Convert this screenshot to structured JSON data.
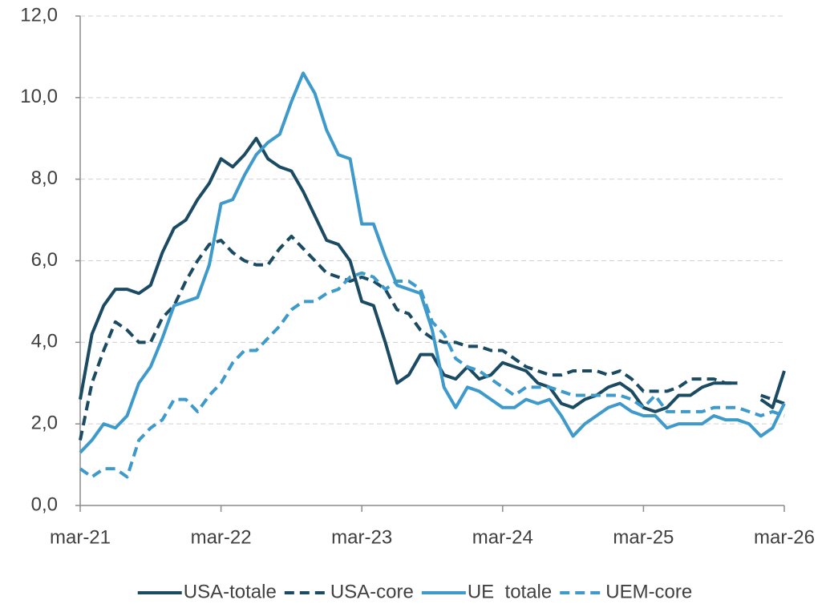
{
  "chart_data": {
    "type": "line",
    "categories": [
      "mar-21",
      null,
      null,
      null,
      null,
      null,
      null,
      null,
      null,
      null,
      null,
      null,
      "mar-22",
      null,
      null,
      null,
      null,
      null,
      null,
      null,
      null,
      null,
      null,
      null,
      "mar-23",
      null,
      null,
      null,
      null,
      null,
      null,
      null,
      null,
      null,
      null,
      null,
      "mar-24",
      null,
      null,
      null,
      null,
      null,
      null,
      null,
      null,
      null,
      null,
      null,
      "mar-25",
      null,
      null,
      null,
      null,
      null,
      null,
      null,
      null,
      null,
      null,
      null,
      "mar-26"
    ],
    "series": [
      {
        "name": "USA-totale",
        "color": "#1b4a63",
        "dashed": false,
        "values": [
          2.6,
          4.2,
          4.9,
          5.3,
          5.3,
          5.2,
          5.4,
          6.2,
          6.8,
          7.0,
          7.5,
          7.9,
          8.5,
          8.3,
          8.6,
          9.0,
          8.5,
          8.3,
          8.2,
          7.7,
          7.1,
          6.5,
          6.4,
          6.0,
          5.0,
          4.9,
          4.0,
          3.0,
          3.2,
          3.7,
          3.7,
          3.2,
          3.1,
          3.4,
          3.1,
          3.2,
          3.5,
          3.4,
          3.3,
          3.0,
          2.9,
          2.5,
          2.4,
          2.6,
          2.7,
          2.9,
          3.0,
          2.8,
          2.4,
          2.3,
          2.4,
          2.7,
          2.7,
          2.9,
          3.0,
          3.0,
          3.0,
          null,
          2.6,
          2.4,
          3.3
        ]
      },
      {
        "name": "USA-core",
        "color": "#1b4a63",
        "dashed": true,
        "values": [
          1.6,
          3.0,
          3.8,
          4.5,
          4.3,
          4.0,
          4.0,
          4.6,
          4.9,
          5.5,
          6.0,
          6.4,
          6.5,
          6.2,
          6.0,
          5.9,
          5.9,
          6.3,
          6.6,
          6.3,
          6.0,
          5.7,
          5.6,
          5.5,
          5.6,
          5.5,
          5.3,
          4.8,
          4.7,
          4.3,
          4.1,
          4.0,
          4.0,
          3.9,
          3.9,
          3.8,
          3.8,
          3.6,
          3.4,
          3.3,
          3.2,
          3.2,
          3.3,
          3.3,
          3.3,
          3.2,
          3.3,
          3.1,
          2.8,
          2.8,
          2.8,
          2.9,
          3.1,
          3.1,
          3.1,
          3.0,
          3.0,
          null,
          2.7,
          2.6,
          2.5
        ]
      },
      {
        "name": "UE  totale",
        "color": "#3e9acb",
        "dashed": false,
        "values": [
          1.3,
          1.6,
          2.0,
          1.9,
          2.2,
          3.0,
          3.4,
          4.1,
          4.9,
          5.0,
          5.1,
          5.9,
          7.4,
          7.5,
          8.1,
          8.6,
          8.9,
          9.1,
          9.9,
          10.6,
          10.1,
          9.2,
          8.6,
          8.5,
          6.9,
          6.9,
          6.1,
          5.4,
          5.3,
          5.2,
          4.3,
          2.9,
          2.4,
          2.9,
          2.8,
          2.6,
          2.4,
          2.4,
          2.6,
          2.5,
          2.6,
          2.2,
          1.7,
          2.0,
          2.2,
          2.4,
          2.5,
          2.3,
          2.2,
          2.2,
          1.9,
          2.0,
          2.0,
          2.0,
          2.2,
          2.1,
          2.1,
          2.0,
          1.7,
          1.9,
          2.5
        ]
      },
      {
        "name": "UEM-core",
        "color": "#3e9acb",
        "dashed": true,
        "values": [
          0.9,
          0.7,
          0.9,
          0.9,
          0.7,
          1.6,
          1.9,
          2.1,
          2.6,
          2.6,
          2.3,
          2.7,
          3.0,
          3.5,
          3.8,
          3.8,
          4.1,
          4.4,
          4.8,
          5.0,
          5.0,
          5.2,
          5.3,
          5.6,
          5.7,
          5.6,
          5.3,
          5.5,
          5.5,
          5.3,
          4.5,
          4.2,
          3.6,
          3.4,
          3.3,
          3.1,
          2.9,
          2.7,
          2.9,
          2.9,
          2.9,
          2.8,
          2.7,
          2.7,
          2.7,
          2.7,
          2.7,
          2.6,
          2.4,
          2.7,
          2.3,
          2.3,
          2.3,
          2.3,
          2.4,
          2.4,
          2.4,
          2.3,
          2.2,
          2.3,
          2.2
        ]
      }
    ],
    "ylim": [
      0,
      12
    ],
    "yticks": [
      {
        "value": 0,
        "label": "0,0"
      },
      {
        "value": 2,
        "label": "2,0"
      },
      {
        "value": 4,
        "label": "4,0"
      },
      {
        "value": 6,
        "label": "6,0"
      },
      {
        "value": 8,
        "label": "8,0"
      },
      {
        "value": 10,
        "label": "10,0"
      },
      {
        "value": 12,
        "label": "12,0"
      }
    ],
    "grid": true,
    "legend": "bottom"
  }
}
